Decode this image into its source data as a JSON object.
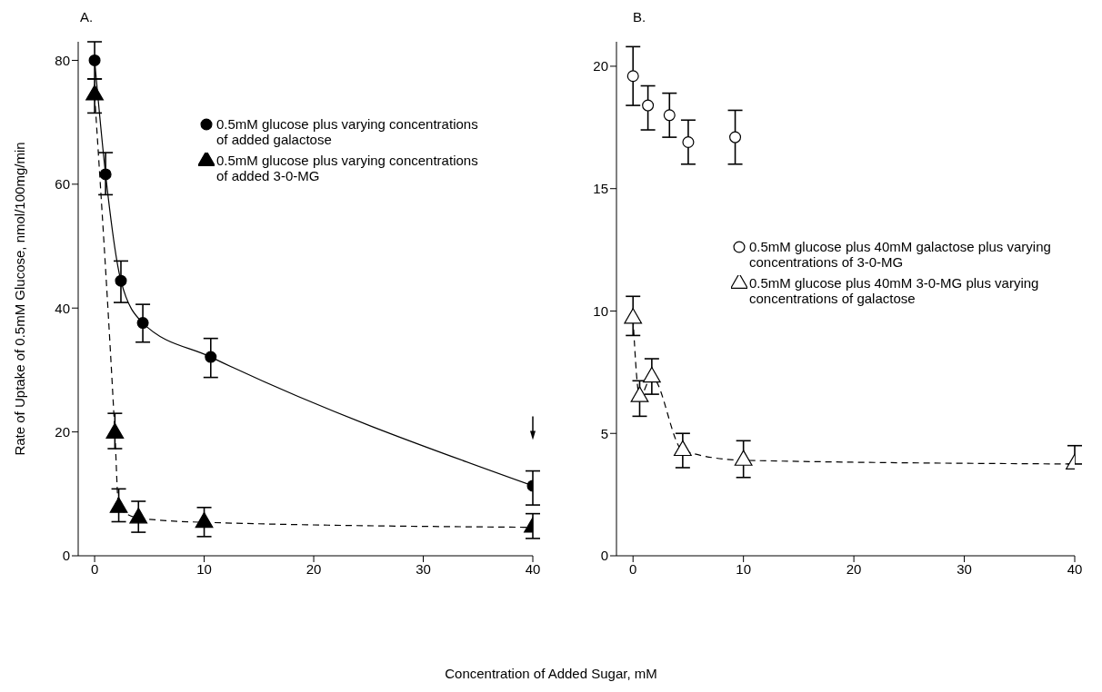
{
  "chart_data": [
    {
      "type": "line",
      "title": "A.",
      "xlabel": "Concentration of Added Sugar, mM",
      "ylabel": "Rate of Uptake of 0.5mM Glucose, nmol/100mg/min",
      "xlim": [
        -1.5,
        40
      ],
      "xticks": [
        0,
        10,
        20,
        30,
        40
      ],
      "ylim": [
        0,
        83
      ],
      "yticks": [
        0,
        20,
        40,
        60,
        80
      ],
      "grid": false,
      "legend": "top right",
      "series": [
        {
          "name": "0.5mM glucose plus varying concentrations of added galactose",
          "marker": "circle",
          "line_style": "solid",
          "color": "#000000",
          "x": [
            0,
            1.0,
            2.4,
            4.4,
            10.6,
            40
          ],
          "values": [
            80,
            61.6,
            44.4,
            37.6,
            32.1,
            11.3
          ],
          "errors": [
            [
              77,
              83
            ],
            [
              58.3,
              65.1
            ],
            [
              40.9,
              47.6
            ],
            [
              34.5,
              40.6
            ],
            [
              28.8,
              35.1
            ],
            [
              8.2,
              13.7
            ]
          ]
        },
        {
          "name": "0.5mM glucose plus varying concentrations of added 3-0-MG",
          "marker": "triangle",
          "line_style": "dashed",
          "color": "#000000",
          "x": [
            0,
            1.85,
            2.2,
            4.0,
            10,
            40
          ],
          "values": [
            74.4,
            19.8,
            7.8,
            6.1,
            5.4,
            4.6
          ],
          "errors": [
            [
              71.5,
              77
            ],
            [
              17.3,
              23
            ],
            [
              5.5,
              10.8
            ],
            [
              3.8,
              8.8
            ],
            [
              3.1,
              7.8
            ],
            [
              2.8,
              6.8
            ]
          ]
        }
      ]
    },
    {
      "type": "line",
      "title": "B.",
      "xlim": [
        -1.5,
        40
      ],
      "xticks": [
        0,
        10,
        20,
        30,
        40
      ],
      "ylim": [
        0,
        21
      ],
      "yticks": [
        0,
        5,
        10,
        15,
        20
      ],
      "grid": false,
      "legend": "right",
      "series": [
        {
          "name": "0.5mM glucose plus 40mM galactose plus varying concentrations of 3-0-MG",
          "type": "scatter",
          "marker": "circle",
          "color": "#ffffff",
          "x": [
            0,
            1.35,
            3.3,
            5.0,
            9.25
          ],
          "values": [
            19.6,
            18.4,
            18.0,
            16.9,
            17.1
          ],
          "errors": [
            [
              18.4,
              20.8
            ],
            [
              17.4,
              19.2
            ],
            [
              17.1,
              18.9
            ],
            [
              16.0,
              17.8
            ],
            [
              16.0,
              18.2
            ]
          ]
        },
        {
          "name": "0.5mM glucose plus 40mM 3-0-MG plus varying concentrations of galactose",
          "marker": "triangle",
          "line_style": "dashed",
          "color": "#ffffff",
          "x": [
            0,
            0.6,
            1.7,
            4.5,
            10,
            40
          ],
          "values": [
            9.7,
            6.5,
            7.3,
            4.3,
            3.9,
            3.75
          ],
          "errors": [
            [
              9.0,
              10.6
            ],
            [
              5.7,
              7.15
            ],
            [
              6.6,
              8.05
            ],
            [
              3.6,
              5.0
            ],
            [
              3.2,
              4.7
            ],
            [
              3.75,
              4.5
            ]
          ]
        }
      ]
    }
  ]
}
